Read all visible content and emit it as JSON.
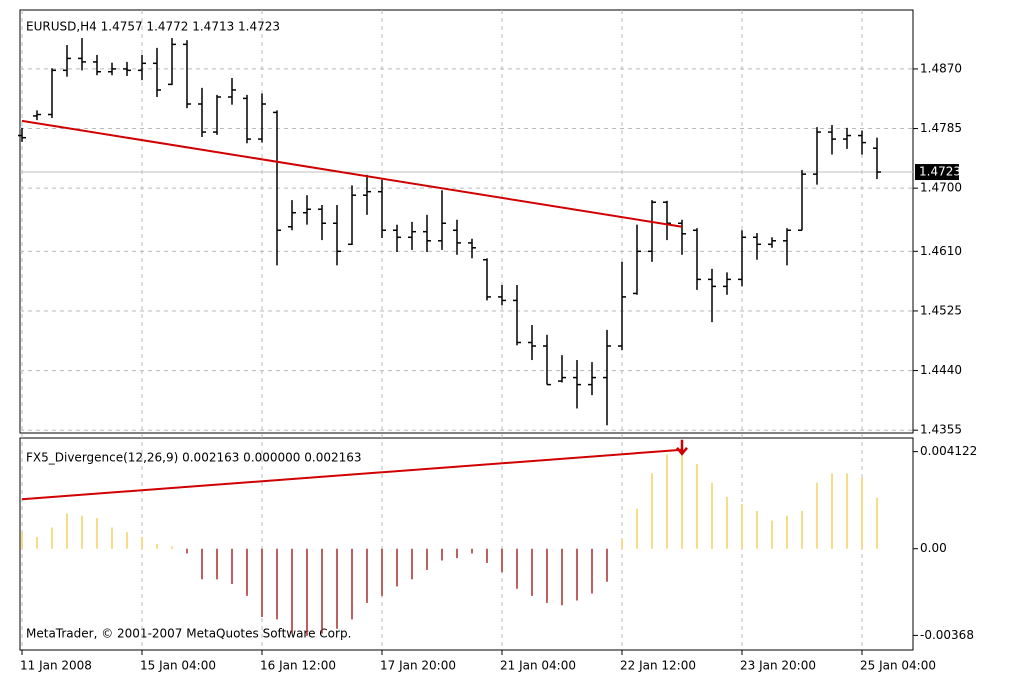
{
  "chart_data": [
    {
      "type": "ohlc",
      "title": "EURUSD,H4  1.4757 1.4772 1.4713 1.4723",
      "categories": [
        "11 Jan 2008",
        null,
        null,
        null,
        null,
        null,
        null,
        null,
        "15 Jan 04:00",
        null,
        null,
        null,
        null,
        null,
        null,
        null,
        "16 Jan 12:00",
        null,
        null,
        null,
        null,
        null,
        null,
        null,
        "17 Jan 20:00",
        null,
        null,
        null,
        null,
        null,
        null,
        null,
        "21 Jan 04:00",
        null,
        null,
        null,
        null,
        null,
        null,
        null,
        "22 Jan 12:00",
        null,
        null,
        null,
        null,
        null,
        null,
        null,
        "23 Jan 20:00",
        null,
        null,
        null,
        null,
        null,
        null,
        null,
        "25 Jan 04:00",
        null
      ],
      "open": [
        1.4775,
        1.4803,
        1.4805,
        1.4868,
        1.4885,
        1.488,
        1.4866,
        1.487,
        1.4868,
        1.4878,
        1.4848,
        1.4905,
        1.482,
        1.478,
        1.483,
        1.4828,
        1.477,
        1.4808,
        1.4645,
        1.4665,
        1.467,
        1.465,
        1.462,
        1.469,
        1.4695,
        1.464,
        1.463,
        1.4638,
        1.4625,
        1.464,
        1.4622,
        1.4598,
        1.4545,
        1.454,
        1.448,
        1.4475,
        1.4425,
        1.443,
        1.442,
        1.443,
        1.4475,
        1.455,
        1.461,
        1.468,
        1.465,
        1.464,
        1.457,
        1.456,
        1.457,
        1.463,
        1.462,
        1.4625,
        1.464,
        1.472,
        1.478,
        1.477,
        1.4775,
        1.4757
      ],
      "high": [
        1.4786,
        1.4811,
        1.4871,
        1.4904,
        1.4914,
        1.489,
        1.4879,
        1.488,
        1.489,
        1.49,
        1.4914,
        1.4911,
        1.4843,
        1.4833,
        1.4857,
        1.4833,
        1.4835,
        1.4811,
        1.4683,
        1.469,
        1.4676,
        1.4676,
        1.4704,
        1.4719,
        1.4712,
        1.4648,
        1.4652,
        1.4662,
        1.4697,
        1.4655,
        1.4628,
        1.46,
        1.4562,
        1.4562,
        1.4505,
        1.4491,
        1.4462,
        1.4455,
        1.4452,
        1.4498,
        1.4595,
        1.4648,
        1.4683,
        1.4682,
        1.4655,
        1.4643,
        1.4585,
        1.458,
        1.464,
        1.4636,
        1.463,
        1.4643,
        1.4726,
        1.4787,
        1.479,
        1.4786,
        1.4782,
        1.4772
      ],
      "low": [
        1.4766,
        1.4797,
        1.48,
        1.4859,
        1.4868,
        1.4861,
        1.4861,
        1.486,
        1.4854,
        1.483,
        1.4847,
        1.4814,
        1.4773,
        1.4776,
        1.4819,
        1.4764,
        1.4765,
        1.459,
        1.464,
        1.4648,
        1.4626,
        1.459,
        1.4619,
        1.4662,
        1.4629,
        1.4609,
        1.4612,
        1.4609,
        1.4612,
        1.4605,
        1.46,
        1.454,
        1.4533,
        1.4476,
        1.4455,
        1.442,
        1.4423,
        1.4386,
        1.4405,
        1.4362,
        1.4469,
        1.4548,
        1.4595,
        1.4626,
        1.4605,
        1.4555,
        1.4509,
        1.4548,
        1.456,
        1.4598,
        1.4615,
        1.459,
        1.464,
        1.4705,
        1.4748,
        1.4756,
        1.4748,
        1.4713
      ],
      "close": [
        1.4772,
        1.4805,
        1.4868,
        1.4885,
        1.488,
        1.4866,
        1.487,
        1.4868,
        1.4878,
        1.484,
        1.4905,
        1.482,
        1.478,
        1.483,
        1.484,
        1.477,
        1.482,
        1.464,
        1.4665,
        1.467,
        1.465,
        1.461,
        1.469,
        1.4695,
        1.464,
        1.463,
        1.4638,
        1.4625,
        1.465,
        1.4622,
        1.4615,
        1.4545,
        1.454,
        1.448,
        1.4475,
        1.442,
        1.443,
        1.442,
        1.443,
        1.4475,
        1.4545,
        1.461,
        1.468,
        1.465,
        1.4635,
        1.457,
        1.456,
        1.457,
        1.463,
        1.462,
        1.4625,
        1.464,
        1.472,
        1.478,
        1.477,
        1.4775,
        1.4765,
        1.4723
      ],
      "color": "#000000",
      "ylim": [
        1.4351,
        1.4954
      ],
      "yticks": [
        {
          "value": 1.487,
          "label": "1.4870"
        },
        1.4785,
        {
          "value": 1.47,
          "label": "1.4700"
        },
        {
          "value": 1.461,
          "label": "1.4610"
        },
        1.4525,
        {
          "value": 1.444,
          "label": "1.4440"
        },
        1.4355
      ],
      "grid": true,
      "last_price": 1.4723,
      "trendline": {
        "x": [
          0,
          44
        ],
        "y": [
          1.4796,
          1.4645
        ],
        "color": "#d00000"
      }
    },
    {
      "type": "bar",
      "title": "FX5_Divergence(12,26,9) 0.002163 0.000000 0.002163",
      "values": [
        0.0007,
        0.0005,
        0.0009,
        0.0015,
        0.0014,
        0.0013,
        0.0009,
        0.0007,
        0.0005,
        0.0002,
        0.0001,
        -0.0002,
        -0.0013,
        -0.0013,
        -0.0015,
        -0.002,
        -0.0029,
        -0.003,
        -0.0036,
        -0.0037,
        -0.0036,
        -0.0034,
        -0.003,
        -0.0023,
        -0.002,
        -0.0016,
        -0.0013,
        -0.0009,
        -0.0005,
        -0.0004,
        -0.0002,
        -0.0006,
        -0.001,
        -0.0017,
        -0.002,
        -0.0023,
        -0.0024,
        -0.0022,
        -0.0019,
        -0.0014,
        0.0004,
        0.0017,
        0.0032,
        0.004,
        0.0042,
        0.0036,
        0.0028,
        0.0022,
        0.0019,
        0.0016,
        0.0012,
        0.0014,
        0.0016,
        0.0028,
        0.0032,
        0.0032,
        0.003,
        0.002163
      ],
      "color_positive": "#f0d060",
      "color_negative": "#a52a2a",
      "ylim": [
        -0.0043,
        0.0047
      ],
      "yticks": [
        0.004122,
        {
          "value": 0,
          "label": "0.00"
        },
        -0.00368
      ],
      "trendline": {
        "x": [
          0,
          44
        ],
        "y": [
          0.0021,
          0.0042
        ],
        "color": "#d00000"
      },
      "annotation": "MetaTrader, © 2001-2007 MetaQuotes Software Corp."
    }
  ]
}
